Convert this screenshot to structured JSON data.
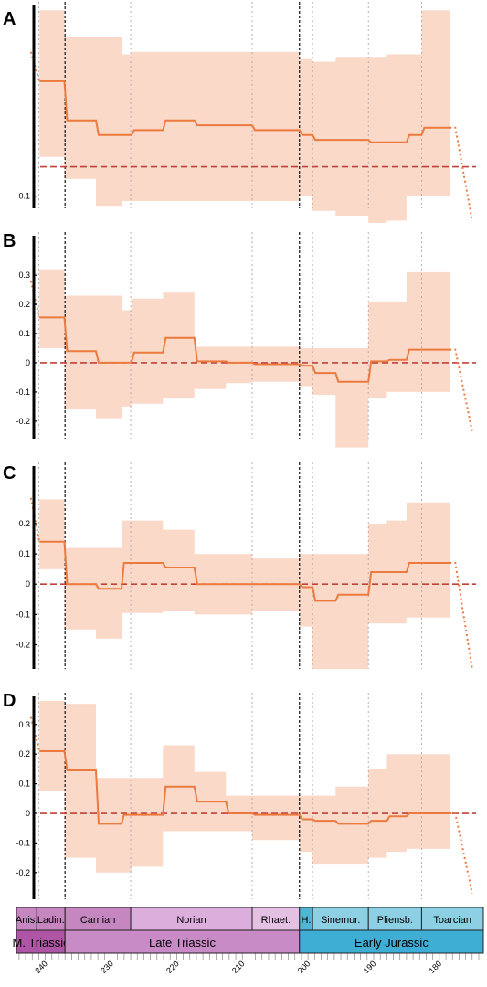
{
  "colors": {
    "band": "#fbd9c9",
    "line": "#ec7a3e",
    "zero_line": "#c0403a",
    "vline_major": "#111111",
    "vline_minor": "#aaaaaa",
    "triassic_stage": "#c686c0",
    "norian": "#dcaedb",
    "rhaetian": "#e4c1e3",
    "late_triassic": "#c98bc6",
    "m_triassic": "#ae55a6",
    "hettangian": "#4fb7d6",
    "jurassic_stage": "#8dcfe3",
    "early_jurassic": "#3faed5"
  },
  "chart_data": [
    {
      "panel": "A",
      "type": "area",
      "yticks": [
        {
          "v": 0.1,
          "label": "0.1"
        }
      ],
      "ylim": [
        0.075,
        0.49
      ],
      "zero_line": 0.16,
      "series": [
        {
          "from": 242.2,
          "to": 240.9,
          "mean": 0.395,
          "lo": null,
          "hi": null,
          "dotted": true
        },
        {
          "from": 240.9,
          "to": 237.1,
          "mean": 0.335,
          "lo": 0.18,
          "hi": 0.48
        },
        {
          "from": 237.1,
          "to": 232.3,
          "mean": 0.255,
          "lo": 0.135,
          "hi": 0.425
        },
        {
          "from": 232.3,
          "to": 228.4,
          "mean": 0.225,
          "lo": 0.08,
          "hi": 0.425
        },
        {
          "from": 228.4,
          "to": 226.9,
          "mean": 0.225,
          "lo": 0.09,
          "hi": 0.39
        },
        {
          "from": 226.9,
          "to": 222.1,
          "mean": 0.235,
          "lo": 0.09,
          "hi": 0.395
        },
        {
          "from": 222.1,
          "to": 217.3,
          "mean": 0.255,
          "lo": 0.09,
          "hi": 0.395
        },
        {
          "from": 217.3,
          "to": 212.5,
          "mean": 0.245,
          "lo": 0.09,
          "hi": 0.395
        },
        {
          "from": 212.5,
          "to": 208.5,
          "mean": 0.245,
          "lo": 0.09,
          "hi": 0.395
        },
        {
          "from": 208.5,
          "to": 201.3,
          "mean": 0.235,
          "lo": 0.09,
          "hi": 0.395
        },
        {
          "from": 201.3,
          "to": 199.3,
          "mean": 0.225,
          "lo": 0.1,
          "hi": 0.38
        },
        {
          "from": 199.3,
          "to": 195.8,
          "mean": 0.215,
          "lo": 0.07,
          "hi": 0.375
        },
        {
          "from": 195.8,
          "to": 190.8,
          "mean": 0.215,
          "lo": 0.06,
          "hi": 0.385
        },
        {
          "from": 190.8,
          "to": 188.0,
          "mean": 0.21,
          "lo": 0.045,
          "hi": 0.385
        },
        {
          "from": 188.0,
          "to": 185.0,
          "mean": 0.21,
          "lo": 0.05,
          "hi": 0.39
        },
        {
          "from": 185.0,
          "to": 182.7,
          "mean": 0.225,
          "lo": 0.1,
          "hi": 0.39
        },
        {
          "from": 182.7,
          "to": 178.4,
          "mean": 0.24,
          "lo": 0.1,
          "hi": 0.48
        },
        {
          "from": 178.4,
          "to": 175.0,
          "mean": 0.24,
          "lo": null,
          "hi": null,
          "dotted": true,
          "end": 0.05
        }
      ]
    },
    {
      "panel": "B",
      "type": "area",
      "yticks": [
        {
          "v": 0.3,
          "label": "0.3"
        },
        {
          "v": 0.2,
          "label": "0.2"
        },
        {
          "v": 0.1,
          "label": "0.1"
        },
        {
          "v": 0,
          "label": "0"
        },
        {
          "v": -0.1,
          "label": "-0.1"
        },
        {
          "v": -0.2,
          "label": "-0.2"
        }
      ],
      "ylim": [
        -0.26,
        0.435
      ],
      "zero_line": 0,
      "series": [
        {
          "from": 242.2,
          "to": 240.9,
          "mean": 0.28,
          "lo": null,
          "hi": null,
          "dotted": true
        },
        {
          "from": 240.9,
          "to": 237.1,
          "mean": 0.155,
          "lo": 0.05,
          "hi": 0.32
        },
        {
          "from": 237.1,
          "to": 232.3,
          "mean": 0.04,
          "lo": -0.16,
          "hi": 0.23
        },
        {
          "from": 232.3,
          "to": 228.4,
          "mean": 0.0,
          "lo": -0.19,
          "hi": 0.23
        },
        {
          "from": 228.4,
          "to": 226.9,
          "mean": 0.0,
          "lo": -0.15,
          "hi": 0.18
        },
        {
          "from": 226.9,
          "to": 222.1,
          "mean": 0.035,
          "lo": -0.14,
          "hi": 0.22
        },
        {
          "from": 222.1,
          "to": 217.3,
          "mean": 0.085,
          "lo": -0.12,
          "hi": 0.24
        },
        {
          "from": 217.3,
          "to": 212.5,
          "mean": 0.005,
          "lo": -0.09,
          "hi": 0.055
        },
        {
          "from": 212.5,
          "to": 208.5,
          "mean": 0.0,
          "lo": -0.07,
          "hi": 0.055
        },
        {
          "from": 208.5,
          "to": 201.3,
          "mean": -0.005,
          "lo": -0.065,
          "hi": 0.055
        },
        {
          "from": 201.3,
          "to": 199.3,
          "mean": -0.01,
          "lo": -0.08,
          "hi": 0.05
        },
        {
          "from": 199.3,
          "to": 195.8,
          "mean": -0.035,
          "lo": -0.11,
          "hi": 0.05
        },
        {
          "from": 195.8,
          "to": 190.8,
          "mean": -0.065,
          "lo": -0.29,
          "hi": 0.05
        },
        {
          "from": 190.8,
          "to": 188.0,
          "mean": 0.005,
          "lo": -0.12,
          "hi": 0.21
        },
        {
          "from": 188.0,
          "to": 185.0,
          "mean": 0.01,
          "lo": -0.1,
          "hi": 0.21
        },
        {
          "from": 185.0,
          "to": 182.7,
          "mean": 0.045,
          "lo": -0.1,
          "hi": 0.31
        },
        {
          "from": 182.7,
          "to": 178.4,
          "mean": 0.045,
          "lo": -0.1,
          "hi": 0.31
        },
        {
          "from": 178.4,
          "to": 175.0,
          "mean": 0.045,
          "lo": null,
          "hi": null,
          "dotted": true,
          "end": -0.235
        }
      ]
    },
    {
      "panel": "C",
      "type": "area",
      "yticks": [
        {
          "v": 0.2,
          "label": "0.2"
        },
        {
          "v": 0.1,
          "label": "0.1"
        },
        {
          "v": 0,
          "label": "0"
        },
        {
          "v": -0.1,
          "label": "-0.1"
        },
        {
          "v": -0.2,
          "label": "-0.2"
        }
      ],
      "ylim": [
        -0.28,
        0.39
      ],
      "zero_line": 0,
      "series": [
        {
          "from": 242.2,
          "to": 240.9,
          "mean": 0.285,
          "lo": null,
          "hi": null,
          "dotted": true
        },
        {
          "from": 240.9,
          "to": 237.1,
          "mean": 0.14,
          "lo": 0.05,
          "hi": 0.28
        },
        {
          "from": 237.1,
          "to": 232.3,
          "mean": 0.0,
          "lo": -0.15,
          "hi": 0.12
        },
        {
          "from": 232.3,
          "to": 228.4,
          "mean": -0.015,
          "lo": -0.18,
          "hi": 0.12
        },
        {
          "from": 228.4,
          "to": 226.9,
          "mean": 0.07,
          "lo": -0.095,
          "hi": 0.21
        },
        {
          "from": 226.9,
          "to": 222.1,
          "mean": 0.07,
          "lo": -0.095,
          "hi": 0.21
        },
        {
          "from": 222.1,
          "to": 217.3,
          "mean": 0.055,
          "lo": -0.09,
          "hi": 0.18
        },
        {
          "from": 217.3,
          "to": 212.5,
          "mean": 0.0,
          "lo": -0.1,
          "hi": 0.1
        },
        {
          "from": 212.5,
          "to": 208.5,
          "mean": 0.0,
          "lo": -0.1,
          "hi": 0.1
        },
        {
          "from": 208.5,
          "to": 201.3,
          "mean": 0.0,
          "lo": -0.09,
          "hi": 0.085
        },
        {
          "from": 201.3,
          "to": 199.3,
          "mean": -0.01,
          "lo": -0.14,
          "hi": 0.1
        },
        {
          "from": 199.3,
          "to": 195.8,
          "mean": -0.055,
          "lo": -0.28,
          "hi": 0.1
        },
        {
          "from": 195.8,
          "to": 190.8,
          "mean": -0.035,
          "lo": -0.28,
          "hi": 0.1
        },
        {
          "from": 190.8,
          "to": 188.0,
          "mean": 0.04,
          "lo": -0.13,
          "hi": 0.2
        },
        {
          "from": 188.0,
          "to": 185.0,
          "mean": 0.04,
          "lo": -0.13,
          "hi": 0.21
        },
        {
          "from": 185.0,
          "to": 182.7,
          "mean": 0.07,
          "lo": -0.11,
          "hi": 0.27
        },
        {
          "from": 182.7,
          "to": 178.4,
          "mean": 0.07,
          "lo": -0.11,
          "hi": 0.27
        },
        {
          "from": 178.4,
          "to": 175.0,
          "mean": 0.07,
          "lo": null,
          "hi": null,
          "dotted": true,
          "end": -0.28
        }
      ]
    },
    {
      "panel": "D",
      "type": "area",
      "yticks": [
        {
          "v": 0.3,
          "label": "0.3"
        },
        {
          "v": 0.2,
          "label": "0.2"
        },
        {
          "v": 0.1,
          "label": "0.1"
        },
        {
          "v": 0,
          "label": "0"
        },
        {
          "v": -0.1,
          "label": "-0.1"
        },
        {
          "v": -0.2,
          "label": "-0.2"
        }
      ],
      "ylim": [
        -0.29,
        0.395
      ],
      "zero_line": 0,
      "series": [
        {
          "from": 242.2,
          "to": 240.9,
          "mean": 0.325,
          "lo": null,
          "hi": null,
          "dotted": true
        },
        {
          "from": 240.9,
          "to": 237.1,
          "mean": 0.21,
          "lo": 0.075,
          "hi": 0.38
        },
        {
          "from": 237.1,
          "to": 232.3,
          "mean": 0.145,
          "lo": -0.15,
          "hi": 0.37
        },
        {
          "from": 232.3,
          "to": 228.4,
          "mean": -0.035,
          "lo": -0.2,
          "hi": 0.12
        },
        {
          "from": 228.4,
          "to": 226.9,
          "mean": -0.005,
          "lo": -0.2,
          "hi": 0.12
        },
        {
          "from": 226.9,
          "to": 222.1,
          "mean": -0.005,
          "lo": -0.18,
          "hi": 0.12
        },
        {
          "from": 222.1,
          "to": 217.3,
          "mean": 0.09,
          "lo": -0.06,
          "hi": 0.23
        },
        {
          "from": 217.3,
          "to": 212.5,
          "mean": 0.04,
          "lo": -0.06,
          "hi": 0.14
        },
        {
          "from": 212.5,
          "to": 208.5,
          "mean": 0.0,
          "lo": -0.06,
          "hi": 0.06
        },
        {
          "from": 208.5,
          "to": 201.3,
          "mean": -0.005,
          "lo": -0.09,
          "hi": 0.06
        },
        {
          "from": 201.3,
          "to": 199.3,
          "mean": -0.02,
          "lo": -0.13,
          "hi": 0.06
        },
        {
          "from": 199.3,
          "to": 195.8,
          "mean": -0.025,
          "lo": -0.17,
          "hi": 0.06
        },
        {
          "from": 195.8,
          "to": 190.8,
          "mean": -0.035,
          "lo": -0.17,
          "hi": 0.09
        },
        {
          "from": 190.8,
          "to": 188.0,
          "mean": -0.025,
          "lo": -0.15,
          "hi": 0.15
        },
        {
          "from": 188.0,
          "to": 185.0,
          "mean": -0.01,
          "lo": -0.13,
          "hi": 0.2
        },
        {
          "from": 185.0,
          "to": 182.7,
          "mean": 0.0,
          "lo": -0.12,
          "hi": 0.2
        },
        {
          "from": 182.7,
          "to": 178.4,
          "mean": 0.0,
          "lo": -0.12,
          "hi": 0.2
        },
        {
          "from": 178.4,
          "to": 175.0,
          "mean": 0.0,
          "lo": null,
          "hi": null,
          "dotted": true,
          "end": -0.27
        }
      ]
    }
  ],
  "vlines": [
    {
      "age": 241.0,
      "style": "minor"
    },
    {
      "age": 237.0,
      "style": "major"
    },
    {
      "age": 227.0,
      "style": "minor"
    },
    {
      "age": 208.5,
      "style": "minor"
    },
    {
      "age": 201.3,
      "style": "major"
    },
    {
      "age": 199.3,
      "style": "minor"
    },
    {
      "age": 190.8,
      "style": "minor"
    },
    {
      "age": 182.7,
      "style": "minor"
    }
  ],
  "x_axis": {
    "age_min": 173.3,
    "age_max": 244.4,
    "labels": [
      {
        "age": 240,
        "label": "240"
      },
      {
        "age": 230,
        "label": "230"
      },
      {
        "age": 220,
        "label": "220"
      },
      {
        "age": 210,
        "label": "210"
      },
      {
        "age": 200,
        "label": "200"
      },
      {
        "age": 190,
        "label": "190"
      },
      {
        "age": 180,
        "label": "180"
      }
    ]
  },
  "stages": [
    {
      "name": "Anis.",
      "from": 244.4,
      "to": 241.3,
      "color": "triassic_stage"
    },
    {
      "name": "Ladin.",
      "from": 241.3,
      "to": 237.0,
      "color": "triassic_stage"
    },
    {
      "name": "Carnian",
      "from": 237.0,
      "to": 227.0,
      "color": "triassic_stage"
    },
    {
      "name": "Norian",
      "from": 227.0,
      "to": 208.5,
      "color": "norian"
    },
    {
      "name": "Rhaet.",
      "from": 208.5,
      "to": 201.3,
      "color": "rhaetian"
    },
    {
      "name": "H.",
      "from": 201.3,
      "to": 199.3,
      "color": "hettangian"
    },
    {
      "name": "Sinemur.",
      "from": 199.3,
      "to": 190.8,
      "color": "jurassic_stage"
    },
    {
      "name": "Pliensb.",
      "from": 190.8,
      "to": 182.7,
      "color": "jurassic_stage"
    },
    {
      "name": "Toarcian",
      "from": 182.7,
      "to": 173.3,
      "color": "jurassic_stage"
    }
  ],
  "epochs": [
    {
      "name": "M. Triassic",
      "from": 244.4,
      "to": 237.0,
      "color": "m_triassic"
    },
    {
      "name": "Late Triassic",
      "from": 237.0,
      "to": 201.3,
      "color": "late_triassic"
    },
    {
      "name": "Early Jurassic",
      "from": 201.3,
      "to": 173.3,
      "color": "early_jurassic"
    }
  ]
}
